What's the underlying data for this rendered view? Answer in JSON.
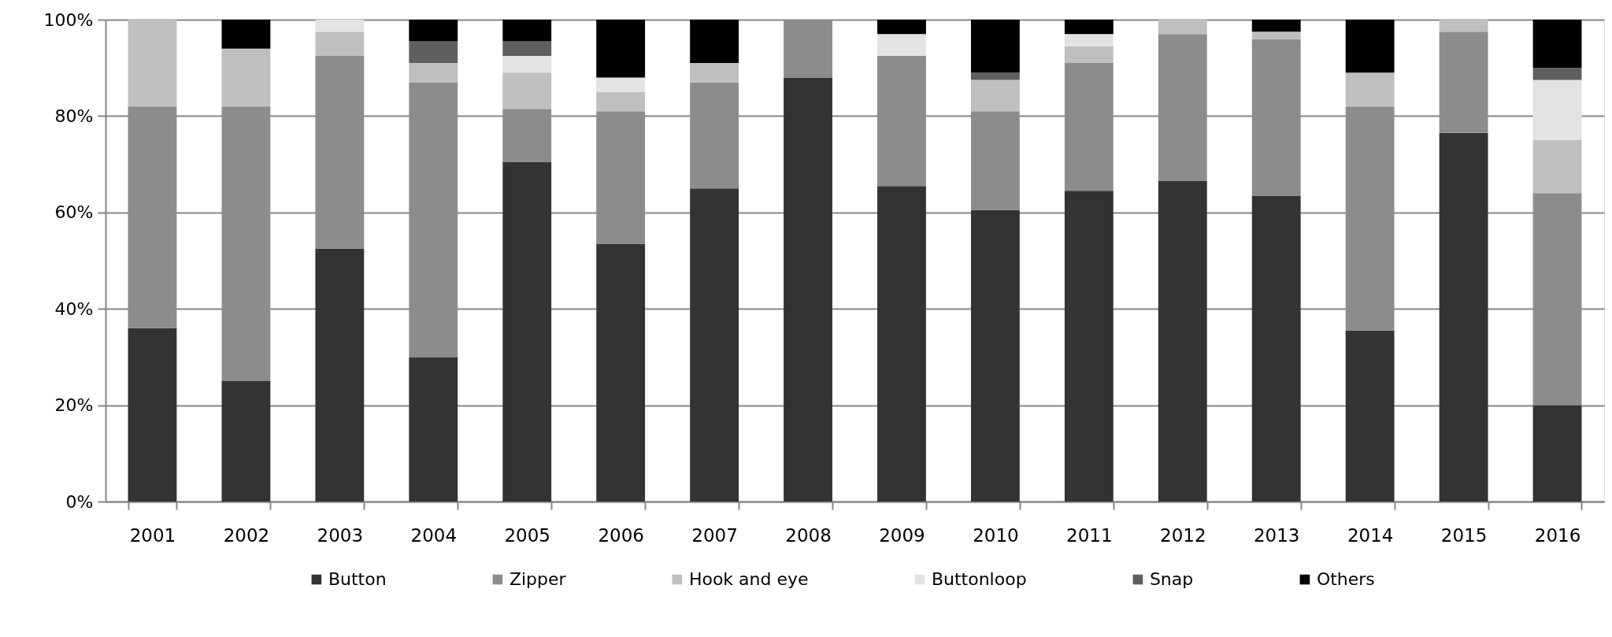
{
  "chart_data": {
    "type": "bar",
    "stacked": true,
    "categories": [
      "2001",
      "2002",
      "2003",
      "2004",
      "2005",
      "2006",
      "2007",
      "2008",
      "2009",
      "2010",
      "2011",
      "2012",
      "2013",
      "2014",
      "2015",
      "2016"
    ],
    "series": [
      {
        "name": "Button",
        "color": "#333333",
        "values": [
          36,
          25,
          52.5,
          30,
          70.5,
          53.5,
          65,
          88,
          65.5,
          60.5,
          64.5,
          66.5,
          63.5,
          35.5,
          76.5,
          20
        ]
      },
      {
        "name": "Zipper",
        "color": "#8c8c8c",
        "values": [
          46,
          57,
          40,
          57,
          11,
          27.5,
          22,
          12,
          27,
          20.5,
          26.5,
          30.5,
          32.5,
          46.5,
          21,
          44
        ]
      },
      {
        "name": "Hook and eye",
        "color": "#bfbfbf",
        "values": [
          18,
          12,
          5,
          4,
          7.5,
          4,
          4,
          null,
          null,
          6.5,
          3.5,
          3,
          1.5,
          7,
          2.5,
          11
        ]
      },
      {
        "name": "Buttonloop",
        "color": "#e3e3e3",
        "values": [
          null,
          null,
          2.5,
          null,
          3.5,
          3,
          null,
          null,
          4.5,
          null,
          2.5,
          null,
          null,
          null,
          null,
          12.5
        ]
      },
      {
        "name": "Snap",
        "color": "#5f5f5f",
        "values": [
          null,
          null,
          null,
          4.5,
          3,
          null,
          null,
          null,
          null,
          1.5,
          null,
          null,
          null,
          null,
          null,
          2.5
        ]
      },
      {
        "name": "Others",
        "color": "#000000",
        "values": [
          null,
          6,
          null,
          4.5,
          4.5,
          12,
          9,
          null,
          3,
          11,
          3,
          null,
          2.5,
          11,
          null,
          10
        ]
      }
    ],
    "ylim": [
      0,
      100
    ],
    "yticks": [
      {
        "value": 0,
        "label": "0%"
      },
      {
        "value": 20,
        "label": "20%"
      },
      {
        "value": 40,
        "label": "40%"
      },
      {
        "value": 60,
        "label": "60%"
      },
      {
        "value": 80,
        "label": "80%"
      },
      {
        "value": 100,
        "label": "100%"
      }
    ],
    "grid": "y",
    "legend": "bottom"
  }
}
